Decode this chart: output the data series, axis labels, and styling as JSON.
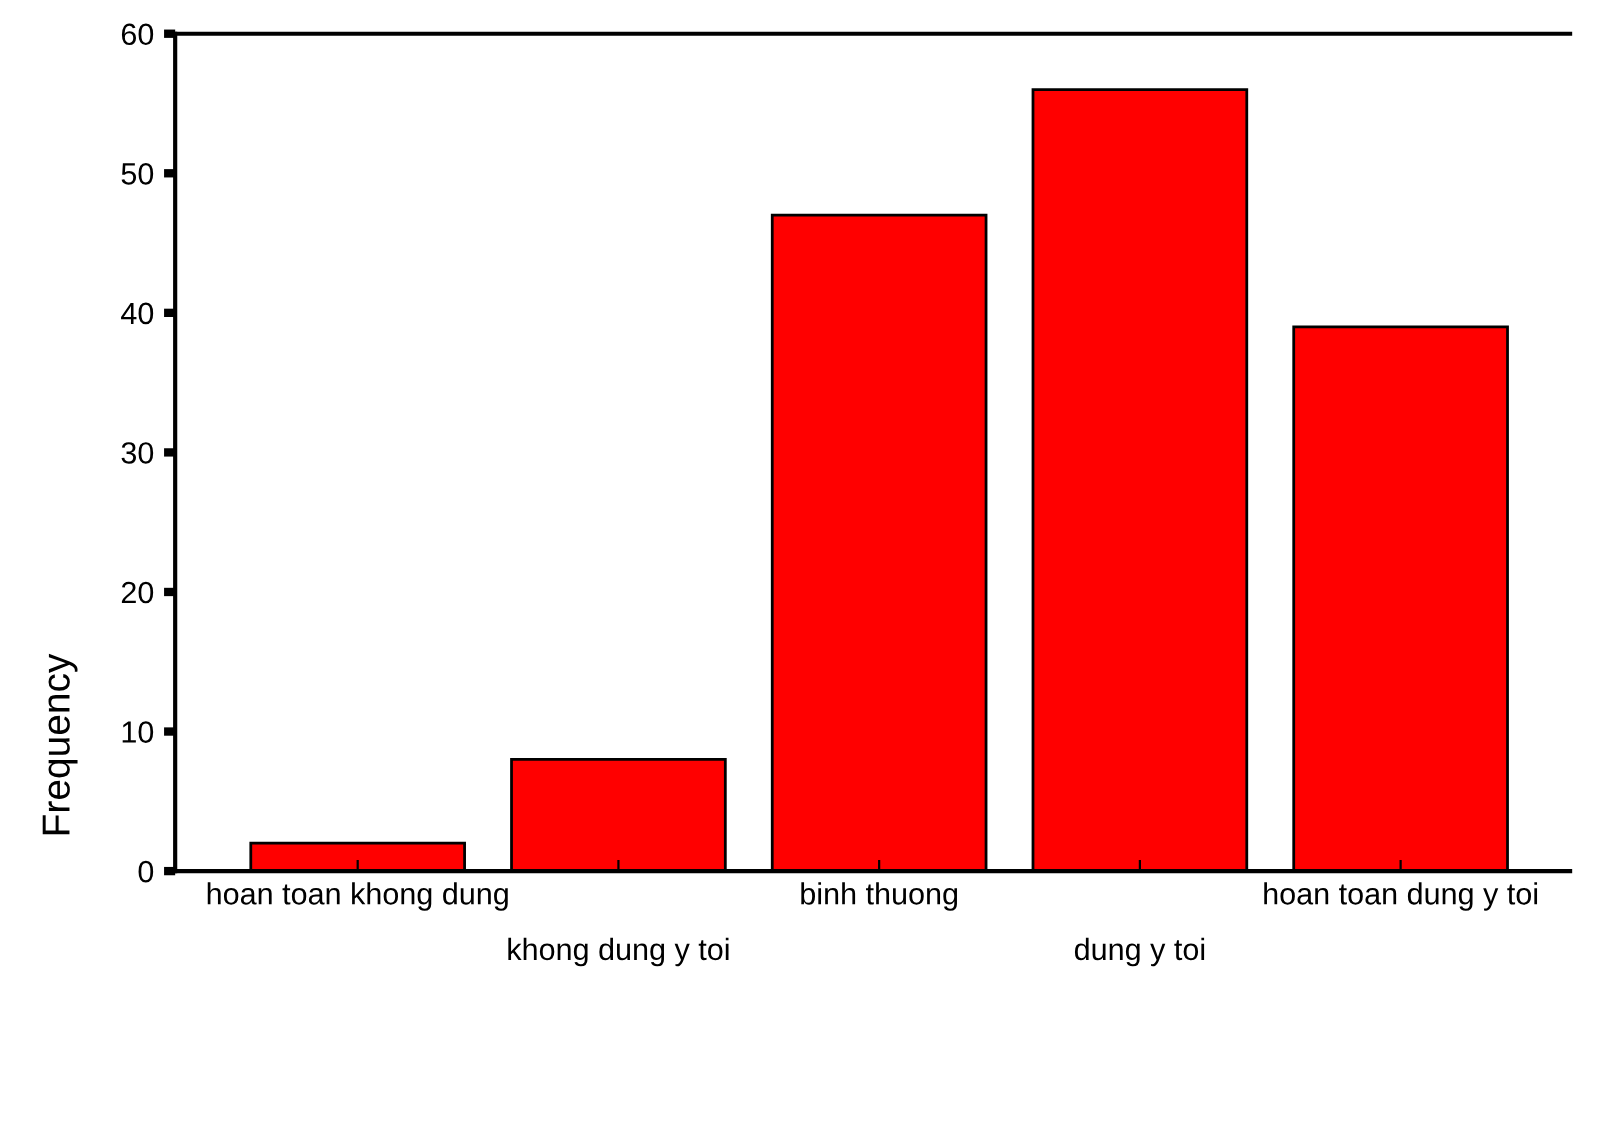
{
  "chart_data": {
    "type": "bar",
    "ylabel": "Frequency",
    "categories": [
      "hoan toan khong dung",
      "khong dung y toi",
      "binh thuong",
      "dung y toi",
      "hoan toan dung y toi"
    ],
    "values": [
      2,
      8,
      47,
      56,
      39
    ],
    "color": "#ff0000",
    "ylim": [
      0,
      60
    ],
    "yticks": [
      0,
      10,
      20,
      30,
      40,
      50,
      60
    ],
    "grid": false,
    "legend": false
  }
}
